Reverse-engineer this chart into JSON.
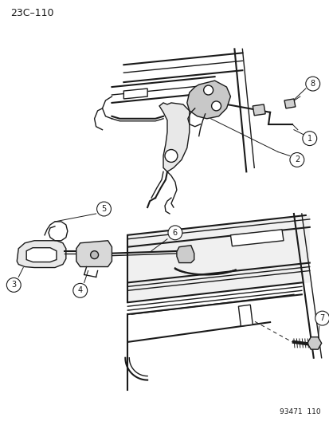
{
  "title": "23C–110",
  "diagram_id": "93471  110",
  "background_color": "#ffffff",
  "line_color": "#1a1a1a",
  "figsize": [
    4.14,
    5.33
  ],
  "dpi": 100
}
